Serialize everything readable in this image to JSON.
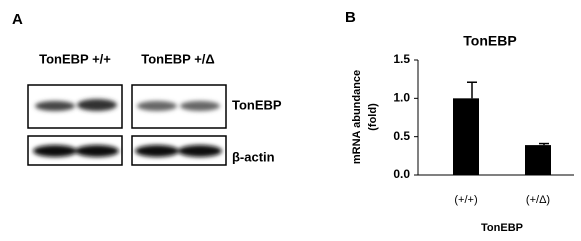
{
  "panel_a": {
    "label": "A",
    "groups": [
      "TonEBP +/+",
      "TonEBP +/Δ"
    ],
    "rows": [
      "TonEBP",
      "β-actin"
    ]
  },
  "chart_data": {
    "type": "bar",
    "panel_label": "B",
    "title": "TonEBP",
    "y_label": [
      "mRNA abundance",
      "(fold)"
    ],
    "x_label": "TonEBP",
    "categories": [
      "(+/+)",
      "(+/Δ)"
    ],
    "values": [
      1.0,
      0.39
    ],
    "errors": [
      0.21,
      0.02
    ],
    "color": "#000000",
    "ylim": [
      0,
      1.5
    ],
    "yticks": [
      {
        "value": 0,
        "label": "0.0"
      },
      {
        "value": 0.5,
        "label": "0.5"
      },
      {
        "value": 1,
        "label": "1.0"
      },
      {
        "value": 1.5,
        "label": "1.5"
      }
    ]
  }
}
